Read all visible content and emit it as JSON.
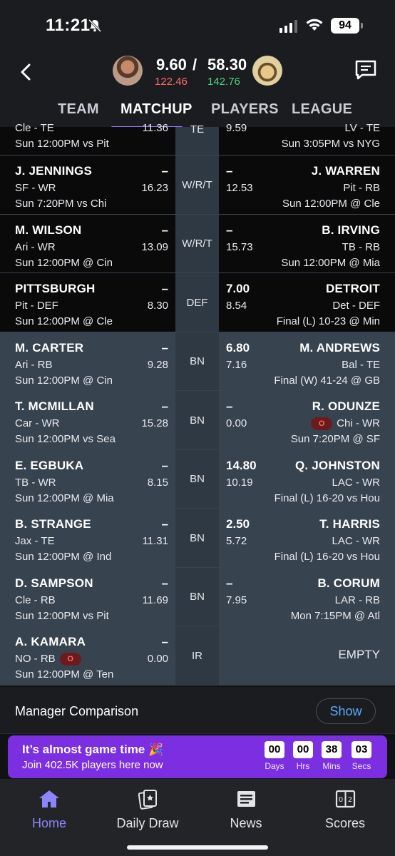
{
  "status": {
    "time": "11:21",
    "battery": "94"
  },
  "header": {
    "my_score": "9.60",
    "separator": "/",
    "opp_score": "58.30",
    "my_proj": "122.46",
    "opp_proj": "142.76"
  },
  "tabs": [
    {
      "label": "TEAM"
    },
    {
      "label": "MATCHUP"
    },
    {
      "label": "PLAYERS"
    },
    {
      "label": "LEAGUE"
    }
  ],
  "rows": [
    {
      "pos": "TE",
      "left": {
        "name": "",
        "score": "",
        "team": "Cle - TE",
        "proj": "11.36",
        "game": "Sun 12:00PM vs Pit"
      },
      "right": {
        "name": "",
        "score": "",
        "team": "LV - TE",
        "proj": "9.59",
        "game": "Sun 3:05PM vs NYG"
      }
    },
    {
      "pos": "W/R/T",
      "left": {
        "name": "J. JENNINGS",
        "score": "–",
        "team": "SF - WR",
        "proj": "16.23",
        "game": "Sun 7:20PM vs Chi"
      },
      "right": {
        "name": "J. WARREN",
        "score": "–",
        "team": "Pit - RB",
        "proj": "12.53",
        "game": "Sun 12:00PM @ Cle"
      }
    },
    {
      "pos": "W/R/T",
      "left": {
        "name": "M. WILSON",
        "score": "–",
        "team": "Ari - WR",
        "proj": "13.09",
        "game": "Sun 12:00PM @ Cin"
      },
      "right": {
        "name": "B. IRVING",
        "score": "–",
        "team": "TB - RB",
        "proj": "15.73",
        "game": "Sun 12:00PM @ Mia"
      }
    },
    {
      "pos": "DEF",
      "left": {
        "name": "PITTSBURGH",
        "score": "–",
        "team": "Pit - DEF",
        "proj": "8.30",
        "game": "Sun 12:00PM @ Cle"
      },
      "right": {
        "name": "DETROIT",
        "score": "7.00",
        "team": "Det - DEF",
        "proj": "8.54",
        "game": "Final (L) 10-23 @ Min"
      }
    },
    {
      "pos": "BN",
      "left": {
        "name": "M. CARTER",
        "score": "–",
        "team": "Ari - RB",
        "proj": "9.28",
        "game": "Sun 12:00PM @ Cin"
      },
      "right": {
        "name": "M. ANDREWS",
        "score": "6.80",
        "team": "Bal - TE",
        "proj": "7.16",
        "game": "Final (W) 41-24 @ GB"
      }
    },
    {
      "pos": "BN",
      "left": {
        "name": "T. MCMILLAN",
        "score": "–",
        "team": "Car - WR",
        "proj": "15.28",
        "game": "Sun 12:00PM vs Sea"
      },
      "right": {
        "name": "R. ODUNZE",
        "score": "–",
        "team": "Chi - WR",
        "badge": "O",
        "proj": "0.00",
        "game": "Sun 7:20PM @ SF"
      }
    },
    {
      "pos": "BN",
      "left": {
        "name": "E. EGBUKA",
        "score": "–",
        "team": "TB - WR",
        "proj": "8.15",
        "game": "Sun 12:00PM @ Mia"
      },
      "right": {
        "name": "Q. JOHNSTON",
        "score": "14.80",
        "team": "LAC - WR",
        "proj": "10.19",
        "game": "Final (L) 16-20 vs Hou"
      }
    },
    {
      "pos": "BN",
      "left": {
        "name": "B. STRANGE",
        "score": "–",
        "team": "Jax - TE",
        "proj": "11.31",
        "game": "Sun 12:00PM @ Ind"
      },
      "right": {
        "name": "T. HARRIS",
        "score": "2.50",
        "team": "LAC - WR",
        "proj": "5.72",
        "game": "Final (L) 16-20 vs Hou"
      }
    },
    {
      "pos": "BN",
      "left": {
        "name": "D. SAMPSON",
        "score": "–",
        "team": "Cle - RB",
        "proj": "11.69",
        "game": "Sun 12:00PM vs Pit"
      },
      "right": {
        "name": "B. CORUM",
        "score": "–",
        "team": "LAR - RB",
        "proj": "7.95",
        "game": "Mon 7:15PM @ Atl"
      }
    },
    {
      "pos": "IR",
      "left": {
        "name": "A. KAMARA",
        "score": "–",
        "team": "NO - RB",
        "badge": "O",
        "proj": "0.00",
        "game": "Sun 12:00PM @ Ten"
      },
      "right": {
        "empty": "EMPTY"
      }
    }
  ],
  "manager_comparison": {
    "label": "Manager Comparison",
    "button": "Show"
  },
  "promo": {
    "title": "It’s almost game time",
    "subtitle": "Join 402.5K players here now",
    "countdown": [
      {
        "value": "00",
        "unit": "Days"
      },
      {
        "value": "00",
        "unit": "Hrs"
      },
      {
        "value": "38",
        "unit": "Mins"
      },
      {
        "value": "03",
        "unit": "Secs"
      }
    ],
    "accent": "#7b2fe0"
  },
  "nav": [
    {
      "label": "Home",
      "icon": "home-icon"
    },
    {
      "label": "Daily Draw",
      "icon": "daily-draw-icon"
    },
    {
      "label": "News",
      "icon": "news-icon"
    },
    {
      "label": "Scores",
      "icon": "scores-icon"
    }
  ],
  "colors": {
    "accent": "#8f84ff",
    "loss": "#ff6b6b",
    "gain": "#4fd17a",
    "link": "#5aa8ff"
  }
}
